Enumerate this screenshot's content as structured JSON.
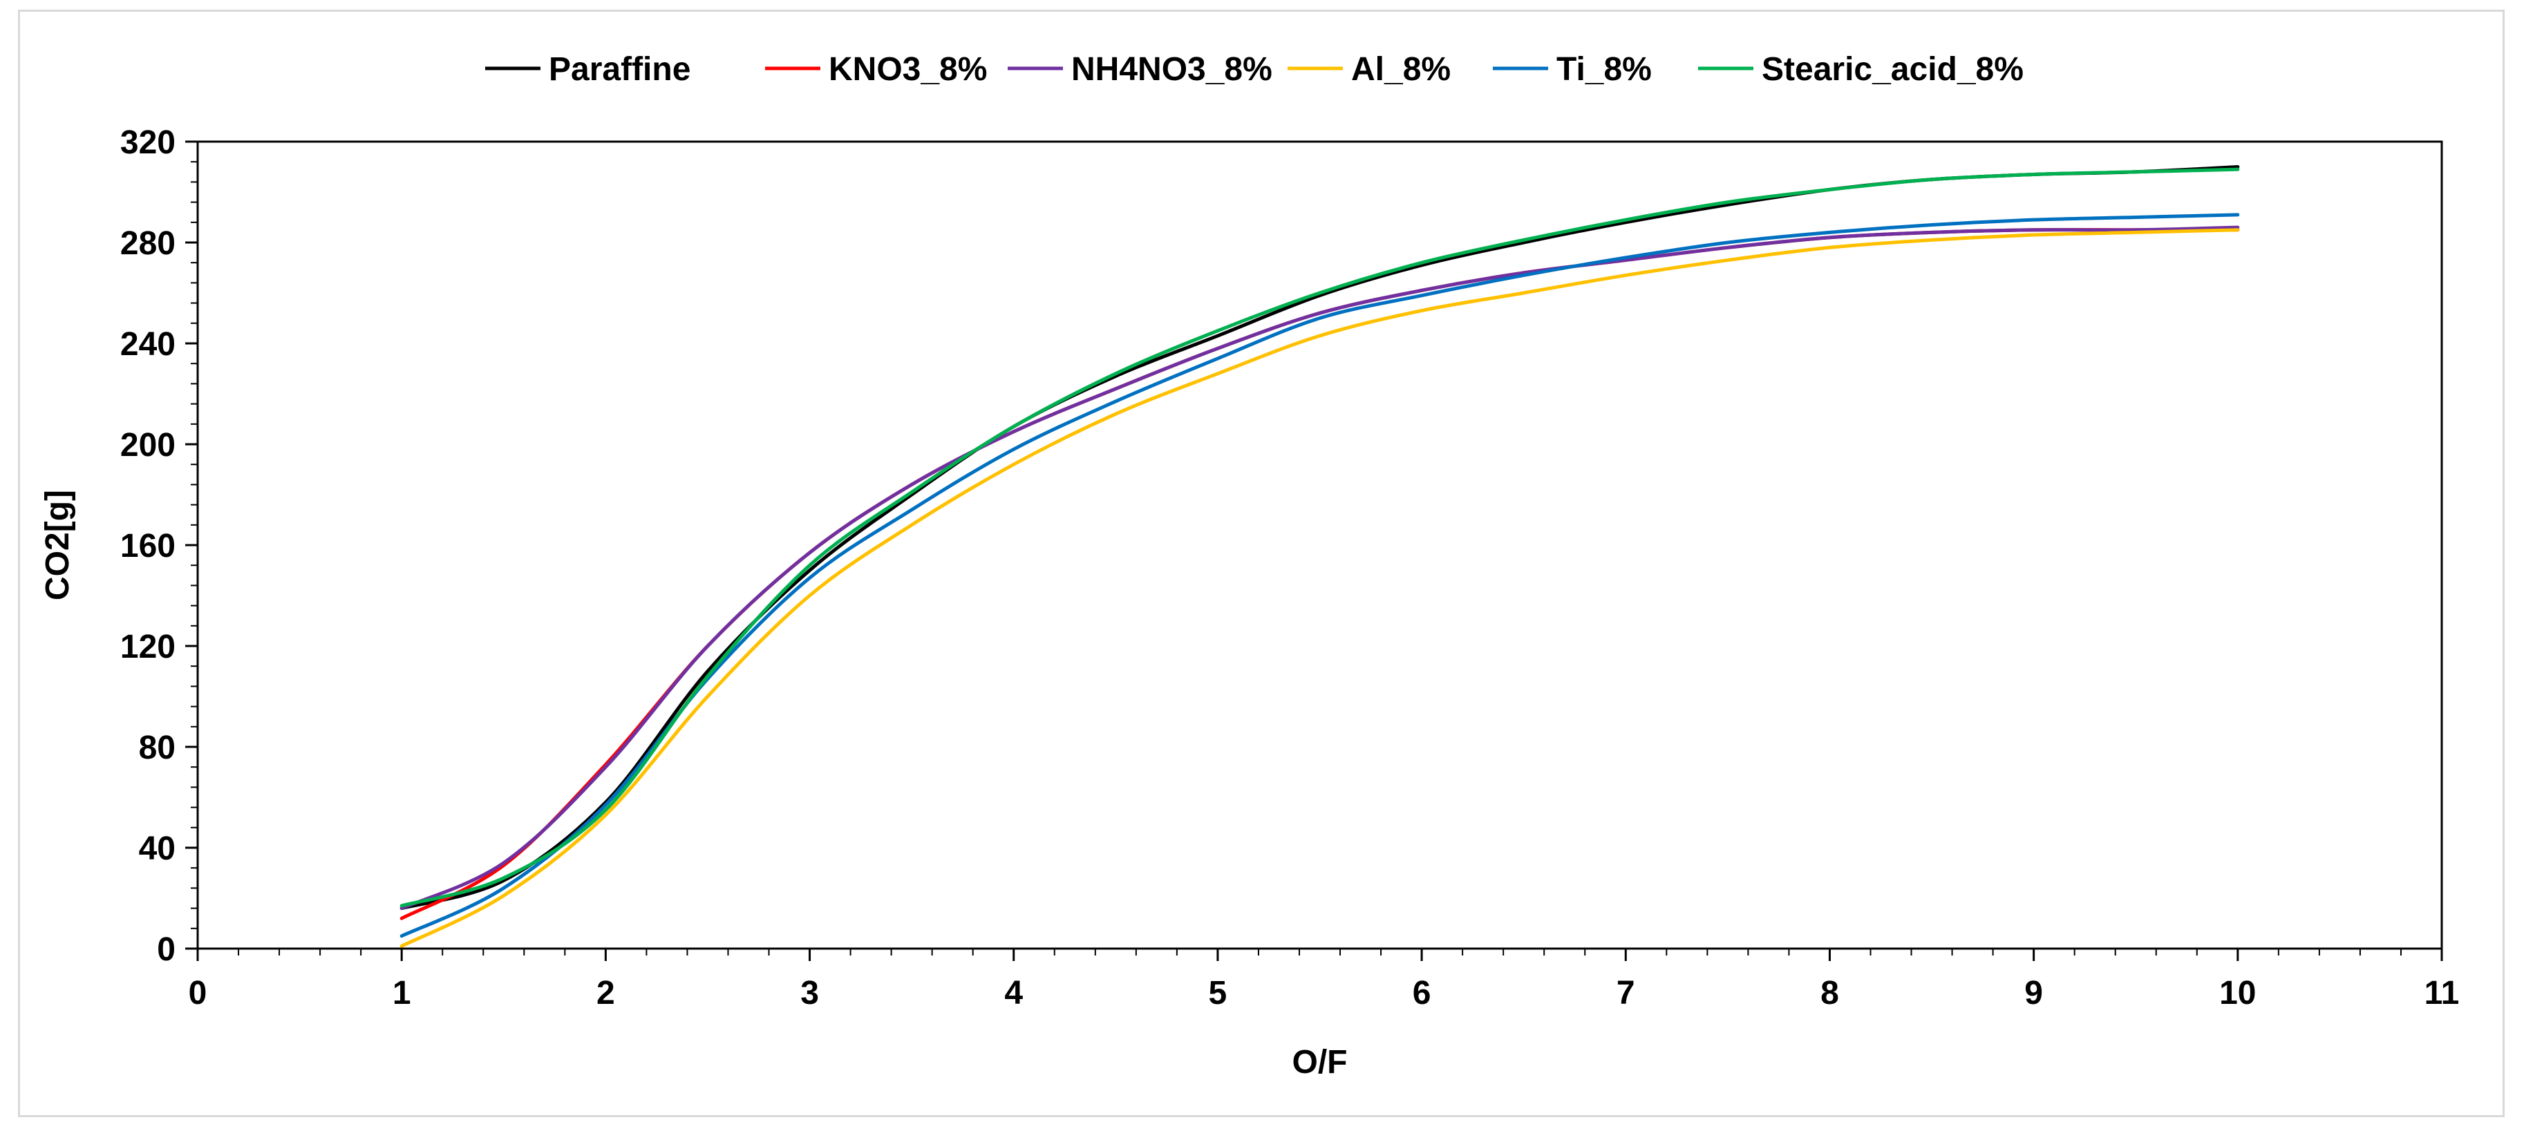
{
  "chart_data": {
    "type": "line",
    "title": "",
    "xlabel": "O/F",
    "ylabel": "CO2[g]",
    "xlim": [
      0,
      11
    ],
    "ylim": [
      0,
      320
    ],
    "xticks": [
      0,
      1,
      2,
      3,
      4,
      5,
      6,
      7,
      8,
      9,
      10,
      11
    ],
    "yticks": [
      0,
      40,
      80,
      120,
      160,
      200,
      240,
      280,
      320
    ],
    "grid": false,
    "legend_position": "top-center",
    "x": [
      1,
      1.5,
      2,
      2.5,
      3,
      3.5,
      4,
      4.5,
      5,
      5.5,
      6,
      6.5,
      7,
      7.5,
      8,
      8.5,
      9,
      9.5,
      10
    ],
    "series": [
      {
        "name": "Paraffine",
        "color": "#000000",
        "values": [
          16,
          27,
          58,
          110,
          150,
          180,
          207,
          227,
          243,
          259,
          271,
          280,
          288,
          295,
          301,
          305,
          307,
          308,
          310
        ]
      },
      {
        "name": "KNO3_8%",
        "color": "#ff0000",
        "values": [
          12,
          33,
          73,
          120,
          157,
          184,
          205,
          222,
          238,
          252,
          261,
          268,
          273,
          278,
          282,
          284,
          285,
          285,
          285
        ]
      },
      {
        "name": "NH4NO3_8%",
        "color": "#7030a0",
        "values": [
          16,
          34,
          72,
          120,
          157,
          184,
          205,
          222,
          238,
          252,
          261,
          268,
          273,
          278,
          282,
          284,
          285,
          285,
          286
        ]
      },
      {
        "name": "Al_8%",
        "color": "#ffc000",
        "values": [
          1,
          21,
          53,
          100,
          140,
          168,
          192,
          212,
          228,
          243,
          253,
          260,
          267,
          273,
          278,
          281,
          283,
          284,
          285
        ]
      },
      {
        "name": "Ti_8%",
        "color": "#0070c0",
        "values": [
          5,
          24,
          57,
          107,
          147,
          174,
          198,
          217,
          234,
          250,
          259,
          267,
          274,
          280,
          284,
          287,
          289,
          290,
          291
        ]
      },
      {
        "name": "Stearic_acid_8%",
        "color": "#00b050",
        "values": [
          17,
          28,
          55,
          108,
          152,
          181,
          207,
          228,
          245,
          260,
          272,
          281,
          289,
          296,
          301,
          305,
          307,
          308,
          309
        ]
      }
    ]
  }
}
